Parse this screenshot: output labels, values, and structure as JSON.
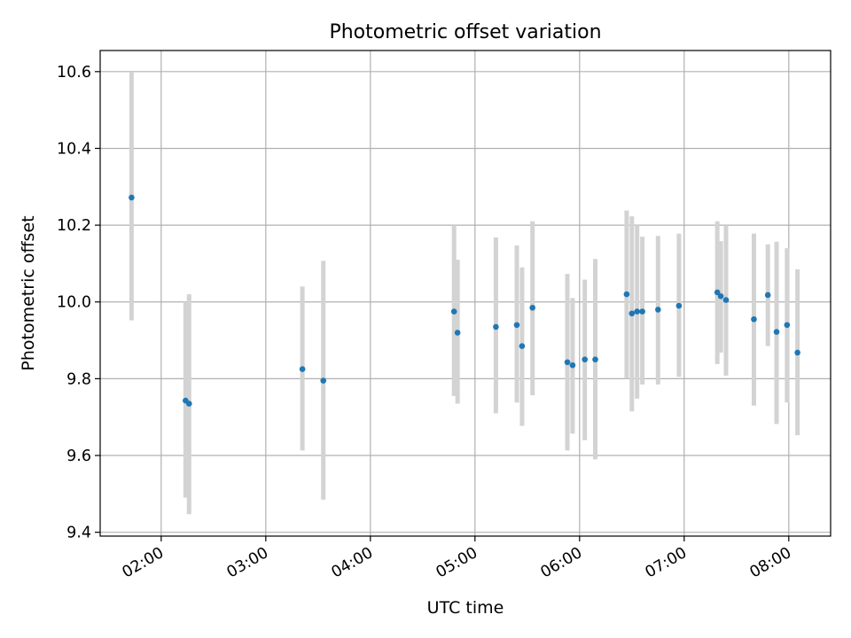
{
  "chart_data": {
    "type": "scatter",
    "title": "Photometric offset variation",
    "xlabel": "UTC time",
    "ylabel": "Photometric offset",
    "grid": true,
    "xlim": [
      "01:25",
      "08:24"
    ],
    "ylim": [
      9.39,
      10.655
    ],
    "xticks": [
      "02:00",
      "03:00",
      "04:00",
      "05:00",
      "06:00",
      "07:00",
      "08:00"
    ],
    "yticks": [
      "9.4",
      "9.6",
      "9.8",
      "10.0",
      "10.2",
      "10.4",
      "10.6"
    ],
    "colors": {
      "points": "#1f77b4",
      "errorbars": "#d3d3d3",
      "grid": "#b0b0b0"
    },
    "series": [
      {
        "x": [
          "01:43",
          "02:14",
          "02:16",
          "03:21",
          "03:33",
          "04:48",
          "04:50",
          "05:12",
          "05:24",
          "05:27",
          "05:33",
          "05:53",
          "05:56",
          "06:03",
          "06:09",
          "06:27",
          "06:30",
          "06:33",
          "06:36",
          "06:45",
          "06:57",
          "07:19",
          "07:21",
          "07:24",
          "07:40",
          "07:48",
          "07:53",
          "07:59",
          "08:05"
        ],
        "y": [
          10.272,
          9.743,
          9.735,
          9.825,
          9.795,
          9.975,
          9.92,
          9.935,
          9.94,
          9.885,
          9.985,
          9.843,
          9.835,
          9.85,
          9.85,
          10.02,
          9.97,
          9.975,
          9.975,
          9.98,
          9.99,
          10.025,
          10.015,
          10.005,
          9.955,
          10.018,
          9.922,
          9.94,
          9.868
        ],
        "yerr_low": [
          9.952,
          9.49,
          9.447,
          9.613,
          9.485,
          9.755,
          9.735,
          9.71,
          9.738,
          9.677,
          9.757,
          9.613,
          9.657,
          9.64,
          9.59,
          9.8,
          9.715,
          9.748,
          9.785,
          9.785,
          9.805,
          9.838,
          9.868,
          9.808,
          9.73,
          9.885,
          9.682,
          9.738,
          9.653
        ],
        "yerr_high": [
          10.6,
          10.0,
          10.02,
          10.04,
          10.107,
          10.2,
          10.11,
          10.168,
          10.147,
          10.09,
          10.21,
          10.073,
          10.01,
          10.058,
          10.112,
          10.238,
          10.223,
          10.2,
          10.17,
          10.172,
          10.178,
          10.21,
          10.158,
          10.2,
          10.178,
          10.15,
          10.157,
          10.14,
          10.085
        ]
      }
    ]
  }
}
